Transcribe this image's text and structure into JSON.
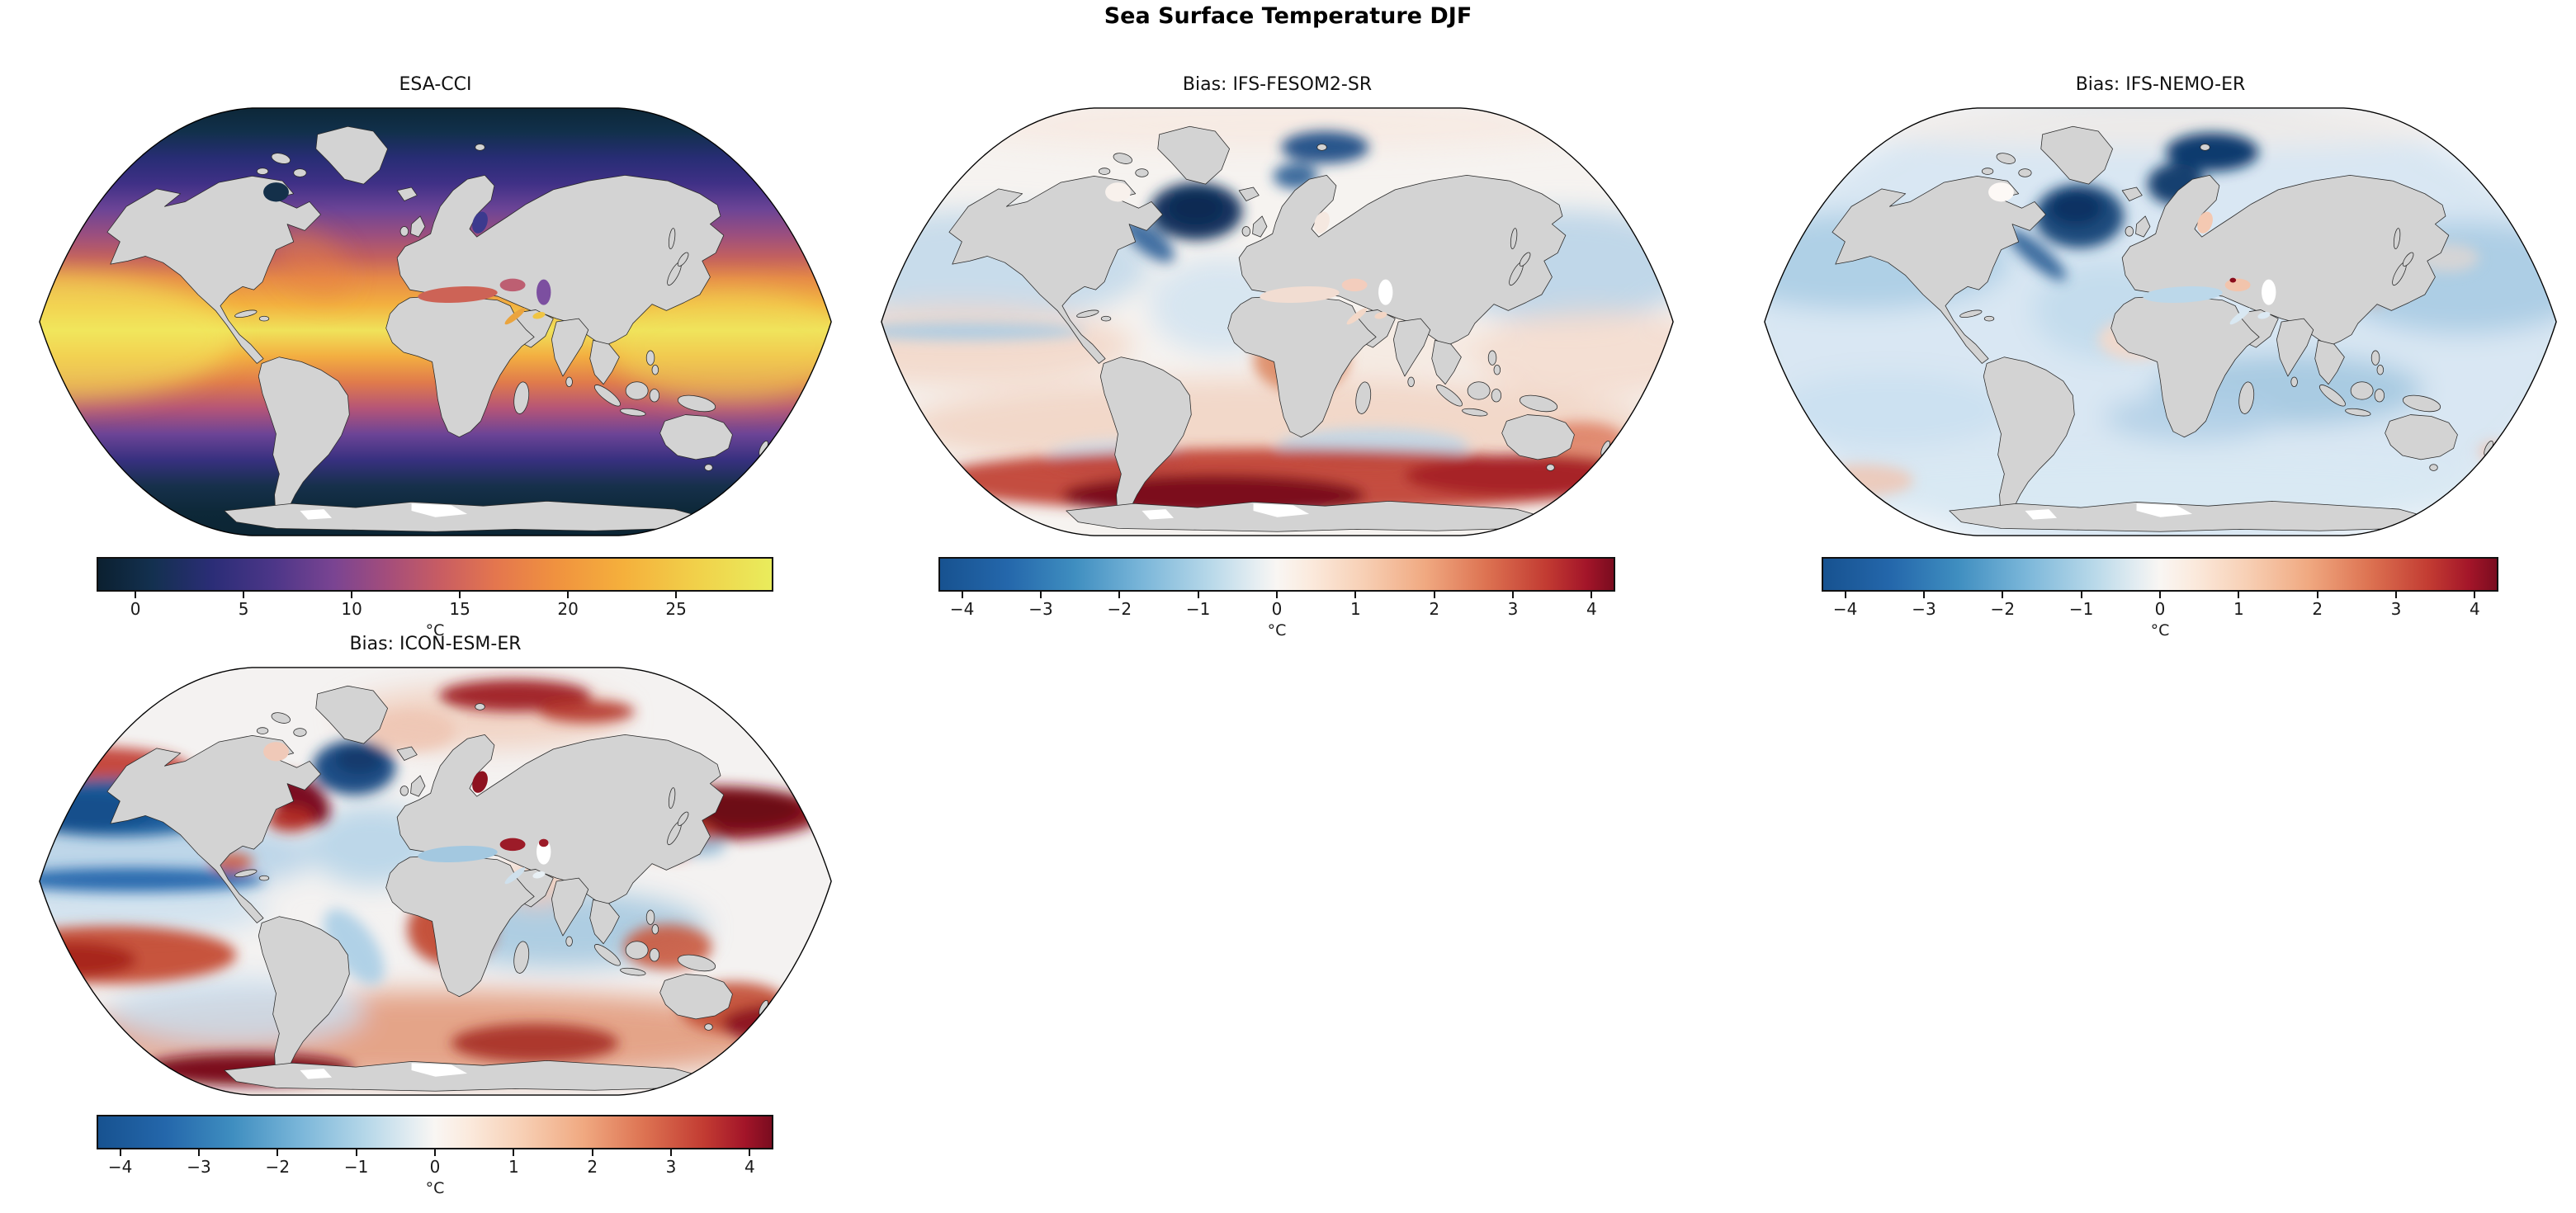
{
  "figure": {
    "title": "Sea Surface Temperature DJF",
    "background_color": "#ffffff",
    "land_color": "#d3d3d3",
    "coastline_color": "#1f1f1f"
  },
  "panels": [
    {
      "id": "esa-cci",
      "title": "ESA-CCI",
      "kind": "sst",
      "colorbar": {
        "label": "°C",
        "ticks": [
          0,
          5,
          10,
          15,
          20,
          25
        ],
        "vmin": -1.8,
        "vmax": 29.5,
        "colormap": "thermal"
      }
    },
    {
      "id": "ifs-fesom2-sr",
      "title": "Bias: IFS-FESOM2-SR",
      "kind": "bias",
      "colorbar": {
        "label": "°C",
        "ticks": [
          -4,
          -3,
          -2,
          -1,
          0,
          1,
          2,
          3,
          4
        ],
        "vmin": -4.3,
        "vmax": 4.3,
        "colormap": "RdBu_r"
      }
    },
    {
      "id": "ifs-nemo-er",
      "title": "Bias: IFS-NEMO-ER",
      "kind": "bias",
      "colorbar": {
        "label": "°C",
        "ticks": [
          -4,
          -3,
          -2,
          -1,
          0,
          1,
          2,
          3,
          4
        ],
        "vmin": -4.3,
        "vmax": 4.3,
        "colormap": "RdBu_r"
      }
    },
    {
      "id": "icon-esm-er",
      "title": "Bias: ICON-ESM-ER",
      "kind": "bias",
      "colorbar": {
        "label": "°C",
        "ticks": [
          -4,
          -3,
          -2,
          -1,
          0,
          1,
          2,
          3,
          4
        ],
        "vmin": -4.3,
        "vmax": 4.3,
        "colormap": "RdBu_r"
      }
    }
  ],
  "chart_data": [
    {
      "type": "heatmap",
      "subtype": "global-map",
      "projection": "Robinson",
      "title": "ESA-CCI",
      "variable": "Sea surface temperature, DJF climatology",
      "units": "°C",
      "colormap": "thermal (dark navy → indigo → purple → red-orange → yellow)",
      "colorbar_ticks": [
        0,
        5,
        10,
        15,
        20,
        25
      ],
      "approx_range": [
        -1.8,
        29.5
      ],
      "features": [
        "near -1.8 to 0 °C (dark navy) in Arctic and around Antarctica",
        "purple mid-latitude bands (~5-12 °C) in both hemispheres",
        "orange subtropics (~18-24 °C)",
        "yellow equatorial band (~27-29 °C), brightest in tropical Pacific and Indonesian warm pool",
        "Mediterranean and Black Sea ~14-16 °C (salmon), Caspian ~8 °C (purple)"
      ]
    },
    {
      "type": "heatmap",
      "subtype": "global-map",
      "projection": "Robinson",
      "title": "Bias: IFS-FESOM2-SR",
      "variable": "SST bias vs ESA-CCI, DJF",
      "units": "°C",
      "colormap": "RdBu_r",
      "colorbar_ticks": [
        -4,
        -3,
        -2,
        -1,
        0,
        1,
        2,
        3,
        4
      ],
      "approx_range": [
        -4.3,
        4.3
      ],
      "features": [
        "strong cold bias (< -4 °C, dark navy) in NW Atlantic south of Greenland and in Barents/Nordic seas",
        "weak cold bias (-1 °C) across North Pacific and northern subtropics",
        "weak warm bias (+0.5 to +1 °C) across tropics and southern mid-latitudes",
        "warm blob (+2 °C) in eastern South Atlantic",
        "very strong warm bias (+3 to >+4 °C, dark maroon) all along the Southern Ocean near Antarctica",
        "small warm spot in Sea of Japan"
      ]
    },
    {
      "type": "heatmap",
      "subtype": "global-map",
      "projection": "Robinson",
      "title": "Bias: IFS-NEMO-ER",
      "variable": "SST bias vs ESA-CCI, DJF",
      "units": "°C",
      "colormap": "RdBu_r",
      "colorbar_ticks": [
        -4,
        -3,
        -2,
        -1,
        0,
        1,
        2,
        3,
        4
      ],
      "approx_range": [
        -4.3,
        4.3
      ],
      "features": [
        "overall weak cold bias (-0.5 to -1.5 °C, light blue) over most oceans",
        "strong cold bias (< -4 °C) in NW Atlantic and Barents/Nordic seas",
        "deeper blue bands in southern Indian Ocean and South Atlantic",
        "small warm spots near Korea/Japan and in the Baltic",
        "faint warm patches in equatorial Atlantic and SE Pacific"
      ]
    },
    {
      "type": "heatmap",
      "subtype": "global-map",
      "projection": "Robinson",
      "title": "Bias: ICON-ESM-ER",
      "variable": "SST bias vs ESA-CCI, DJF",
      "units": "°C",
      "colormap": "RdBu_r",
      "colorbar_ticks": [
        -4,
        -3,
        -2,
        -1,
        0,
        1,
        2,
        3,
        4
      ],
      "approx_range": [
        -4.3,
        4.3
      ],
      "features": [
        "strong cold bias bands (-3 to -4 °C) in central North Pacific, equatorial Pacific tongue and central North Atlantic",
        "very strong warm bias (>+4 °C, maroon) along NW Atlantic coast (Gulf Stream) and NW Pacific (Kuroshio) extension",
        "warm bias in Siberian Arctic, Baltic and Black Sea",
        "warm blob off Namibia in SE Atlantic and warm bands around Australia and New Zealand",
        "broad warm bias (+1 to +4 °C) over the whole Southern Ocean, strongest near bottom-left and right edges",
        "cold bias band in southern Indian Ocean and SW Pacific"
      ]
    }
  ]
}
